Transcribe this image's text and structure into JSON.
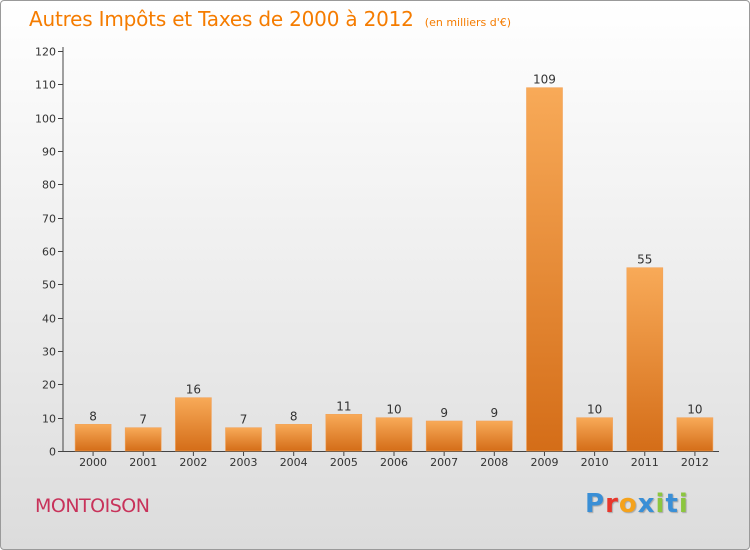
{
  "header": {
    "title": "Autres Impôts et Taxes de 2000 à 2012",
    "subtitle": "(en milliers d'€)"
  },
  "footer": {
    "commune": "MONTOISON",
    "logo_text": "Proxiti"
  },
  "colors": {
    "title": "#f57c00",
    "commune": "#c8325a",
    "bar_light": "#f8aa58",
    "bar_dark": "#d9741c",
    "logo_letters": [
      "#3a8fd6",
      "#e8372c",
      "#f5a21b",
      "#3a8fd6",
      "#8cc63f",
      "#3a8fd6",
      "#8cc63f"
    ]
  },
  "chart_data": {
    "type": "bar",
    "title": "Autres Impôts et Taxes de 2000 à 2012",
    "subtitle": "(en milliers d'€)",
    "categories": [
      "2000",
      "2001",
      "2002",
      "2003",
      "2004",
      "2005",
      "2006",
      "2007",
      "2008",
      "2009",
      "2010",
      "2011",
      "2012"
    ],
    "values": [
      8,
      7,
      16,
      7,
      8,
      11,
      10,
      9,
      9,
      109,
      10,
      55,
      10
    ],
    "ylim": [
      0,
      120
    ],
    "yticks": [
      0,
      10,
      20,
      30,
      40,
      50,
      60,
      70,
      80,
      90,
      100,
      110,
      120
    ],
    "grid": false,
    "legend": "none"
  }
}
